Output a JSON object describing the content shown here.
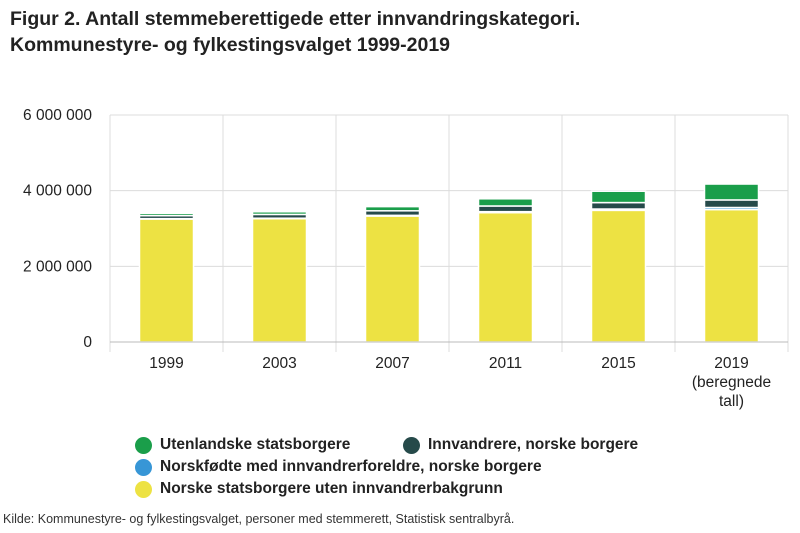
{
  "title": {
    "line1": "Figur 2. Antall stemmeberettigede etter innvandringskategori.",
    "line2": "Kommunestyre- og fylkestingsvalget 1999-2019"
  },
  "source": "Kilde: Kommunestyre- og fylkestingsvalget, personer med stemmerett, Statistisk sentralbyrå.",
  "chart_data": {
    "type": "bar",
    "stacked": true,
    "categories": [
      [
        "1999"
      ],
      [
        "2003"
      ],
      [
        "2007"
      ],
      [
        "2011"
      ],
      [
        "2015"
      ],
      [
        "2019",
        "(beregnede",
        "tall)"
      ]
    ],
    "y_ticks": [
      "0",
      "2 000 000",
      "4 000 000",
      "6 000 000"
    ],
    "y_tick_values": [
      0,
      2000000,
      4000000,
      6000000
    ],
    "ylim": [
      0,
      6000000
    ],
    "grid": true,
    "legend_position": "bottom",
    "series": [
      {
        "name": "Norske statsborgere uten innvandrerbakgrunn",
        "color": "#ede243",
        "values": [
          3250000,
          3260000,
          3330000,
          3420000,
          3480000,
          3500000
        ]
      },
      {
        "name": "Norskfødte med innvandrerforeldre, norske borgere",
        "color": "#3796d6",
        "values": [
          10000,
          12000,
          18000,
          25000,
          35000,
          55000
        ]
      },
      {
        "name": "Innvandrere, norske borgere",
        "color": "#264a4a",
        "values": [
          80000,
          100000,
          120000,
          150000,
          170000,
          200000
        ]
      },
      {
        "name": "Utenlandske statsborgere",
        "color": "#1a9e4a",
        "values": [
          60000,
          70000,
          110000,
          190000,
          300000,
          420000
        ]
      }
    ]
  },
  "legend": {
    "rows": [
      [
        {
          "label": "Utenlandske statsborgere",
          "color": "#1a9e4a"
        },
        {
          "label": "Innvandrere, norske borgere",
          "color": "#264a4a"
        }
      ],
      [
        {
          "label": "Norskfødte med innvandrerforeldre, norske borgere",
          "color": "#3796d6"
        }
      ],
      [
        {
          "label": "Norske statsborgere uten innvandrerbakgrunn",
          "color": "#ede243"
        }
      ]
    ]
  }
}
